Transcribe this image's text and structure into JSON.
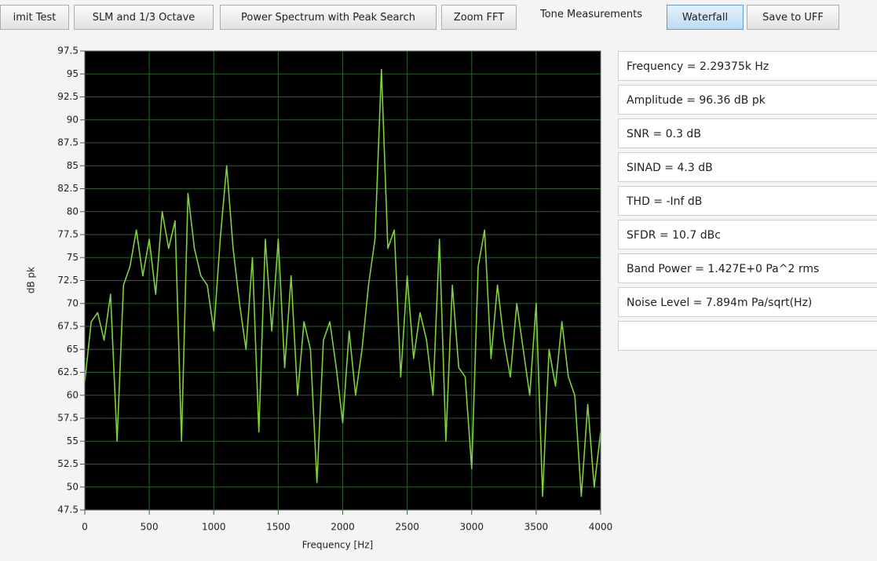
{
  "tabs": [
    "imit Test",
    "SLM and 1/3 Octave",
    "Power Spectrum with Peak Search",
    "Zoom FFT",
    "Tone Measurements",
    "Waterfall",
    "Save to UFF"
  ],
  "chart_data": {
    "type": "line",
    "xlabel": "Frequency [Hz]",
    "ylabel": "dB pk",
    "color": "#7fd23c",
    "grid": true,
    "x": [
      0,
      50,
      100,
      150,
      200,
      250,
      300,
      350,
      400,
      450,
      500,
      550,
      600,
      650,
      700,
      750,
      800,
      850,
      900,
      950,
      1000,
      1050,
      1100,
      1150,
      1200,
      1250,
      1300,
      1350,
      1400,
      1450,
      1500,
      1550,
      1600,
      1650,
      1700,
      1750,
      1800,
      1850,
      1900,
      1950,
      2000,
      2050,
      2100,
      2150,
      2200,
      2250,
      2300,
      2350,
      2400,
      2450,
      2500,
      2550,
      2600,
      2650,
      2700,
      2750,
      2800,
      2850,
      2900,
      2950,
      3000,
      3050,
      3100,
      3150,
      3200,
      3250,
      3300,
      3350,
      3400,
      3450,
      3500,
      3550,
      3600,
      3650,
      3700,
      3750,
      3800,
      3850,
      3900,
      3950,
      4000
    ],
    "values": [
      61.5,
      68,
      69,
      66,
      71,
      55,
      72,
      74,
      78,
      73,
      77,
      71,
      80,
      76,
      79,
      55,
      82,
      76,
      73,
      72,
      67,
      77,
      85,
      76,
      70,
      65,
      75,
      56,
      77,
      67,
      77,
      63,
      73,
      60,
      68,
      65,
      50.5,
      66,
      68,
      63,
      57,
      67,
      60,
      65,
      72,
      77,
      95.5,
      76,
      78,
      62,
      73,
      64,
      69,
      66,
      60,
      77,
      55,
      72,
      63,
      62,
      52,
      74,
      78,
      64,
      72,
      66,
      62,
      70,
      65,
      60,
      70,
      49,
      65,
      61,
      68,
      62,
      60,
      49,
      59,
      50,
      56
    ],
    "xlim": [
      0,
      4000
    ],
    "xticks": [
      0,
      500,
      1000,
      1500,
      2000,
      2500,
      3000,
      3500,
      4000
    ],
    "ylim": [
      47.5,
      97.5
    ],
    "yticks": [
      47.5,
      50,
      52.5,
      55,
      57.5,
      60,
      62.5,
      65,
      67.5,
      70,
      72.5,
      75,
      77.5,
      80,
      82.5,
      85,
      87.5,
      90,
      92.5,
      95,
      97.5
    ]
  },
  "measurements": [
    "Frequency = 2.29375k Hz",
    "Amplitude = 96.36 dB pk",
    "SNR = 0.3 dB",
    "SINAD = 4.3 dB",
    "THD = -Inf dB",
    "SFDR = 10.7 dBc",
    "Band Power = 1.427E+0 Pa^2 rms",
    "Noise Level = 7.894m Pa/sqrt(Hz)"
  ]
}
